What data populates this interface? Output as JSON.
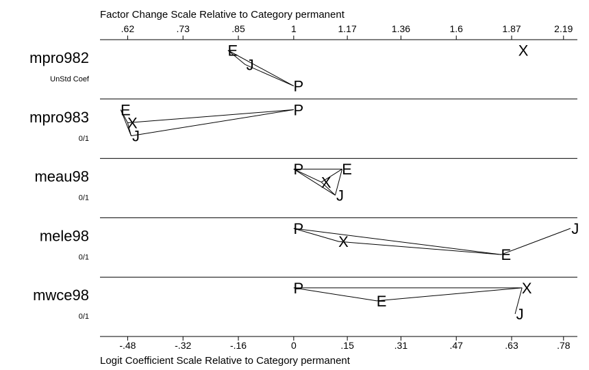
{
  "chart_data": {
    "type": "scatter",
    "top_axis": {
      "title": "Factor Change Scale Relative to Category permanent",
      "ticks": [
        ".62",
        ".73",
        ".85",
        "1",
        "1.17",
        "1.36",
        "1.6",
        "1.87",
        "2.19"
      ],
      "tick_values": [
        -0.48,
        -0.32,
        -0.16,
        0,
        0.155,
        0.31,
        0.47,
        0.63,
        0.78
      ]
    },
    "bottom_axis": {
      "title": "Logit Coefficient Scale Relative to Category permanent",
      "ticks": [
        "-.48",
        "-.32",
        "-.16",
        "0",
        ".15",
        ".31",
        ".47",
        ".63",
        ".78"
      ],
      "tick_values": [
        -0.48,
        -0.32,
        -0.16,
        0,
        0.155,
        0.31,
        0.47,
        0.63,
        0.78
      ]
    },
    "xlim": [
      -0.56,
      0.82
    ],
    "rows": [
      {
        "name": "mpro982",
        "sub": "UnStd Coef",
        "points": [
          {
            "label": "E",
            "x": -0.19,
            "y": 0.82
          },
          {
            "label": "J",
            "x": -0.14,
            "y": 0.58
          },
          {
            "label": "P",
            "x": 0.0,
            "y": 0.22
          },
          {
            "label": "X",
            "x": 0.65,
            "y": 0.82
          }
        ],
        "lines": [
          [
            "E",
            "J"
          ],
          [
            "E",
            "P"
          ],
          [
            "J",
            "P"
          ]
        ]
      },
      {
        "name": "mpro983",
        "sub": "0/1",
        "points": [
          {
            "label": "E",
            "x": -0.5,
            "y": 0.82
          },
          {
            "label": "X",
            "x": -0.48,
            "y": 0.6
          },
          {
            "label": "J",
            "x": -0.47,
            "y": 0.38
          },
          {
            "label": "P",
            "x": 0.0,
            "y": 0.82
          }
        ],
        "lines": [
          [
            "E",
            "X"
          ],
          [
            "E",
            "J"
          ],
          [
            "X",
            "J"
          ],
          [
            "X",
            "P"
          ],
          [
            "J",
            "P"
          ]
        ]
      },
      {
        "name": "meau98",
        "sub": "0/1",
        "points": [
          {
            "label": "P",
            "x": 0.0,
            "y": 0.82
          },
          {
            "label": "E",
            "x": 0.14,
            "y": 0.82
          },
          {
            "label": "X",
            "x": 0.08,
            "y": 0.6
          },
          {
            "label": "J",
            "x": 0.12,
            "y": 0.38
          }
        ],
        "lines": [
          [
            "P",
            "E"
          ],
          [
            "P",
            "X"
          ],
          [
            "P",
            "J"
          ],
          [
            "E",
            "X"
          ],
          [
            "E",
            "J"
          ],
          [
            "X",
            "J"
          ]
        ]
      },
      {
        "name": "mele98",
        "sub": "0/1",
        "points": [
          {
            "label": "P",
            "x": 0.0,
            "y": 0.82
          },
          {
            "label": "X",
            "x": 0.13,
            "y": 0.6
          },
          {
            "label": "E",
            "x": 0.6,
            "y": 0.38
          },
          {
            "label": "J",
            "x": 0.8,
            "y": 0.82
          }
        ],
        "lines": [
          [
            "P",
            "X"
          ],
          [
            "P",
            "E"
          ],
          [
            "X",
            "E"
          ],
          [
            "E",
            "J"
          ]
        ]
      },
      {
        "name": "mwce98",
        "sub": "0/1",
        "points": [
          {
            "label": "P",
            "x": 0.0,
            "y": 0.82
          },
          {
            "label": "E",
            "x": 0.24,
            "y": 0.6
          },
          {
            "label": "X",
            "x": 0.66,
            "y": 0.82
          },
          {
            "label": "J",
            "x": 0.64,
            "y": 0.38
          }
        ],
        "lines": [
          [
            "P",
            "X"
          ],
          [
            "P",
            "E"
          ],
          [
            "E",
            "X"
          ],
          [
            "X",
            "J"
          ]
        ]
      }
    ]
  }
}
